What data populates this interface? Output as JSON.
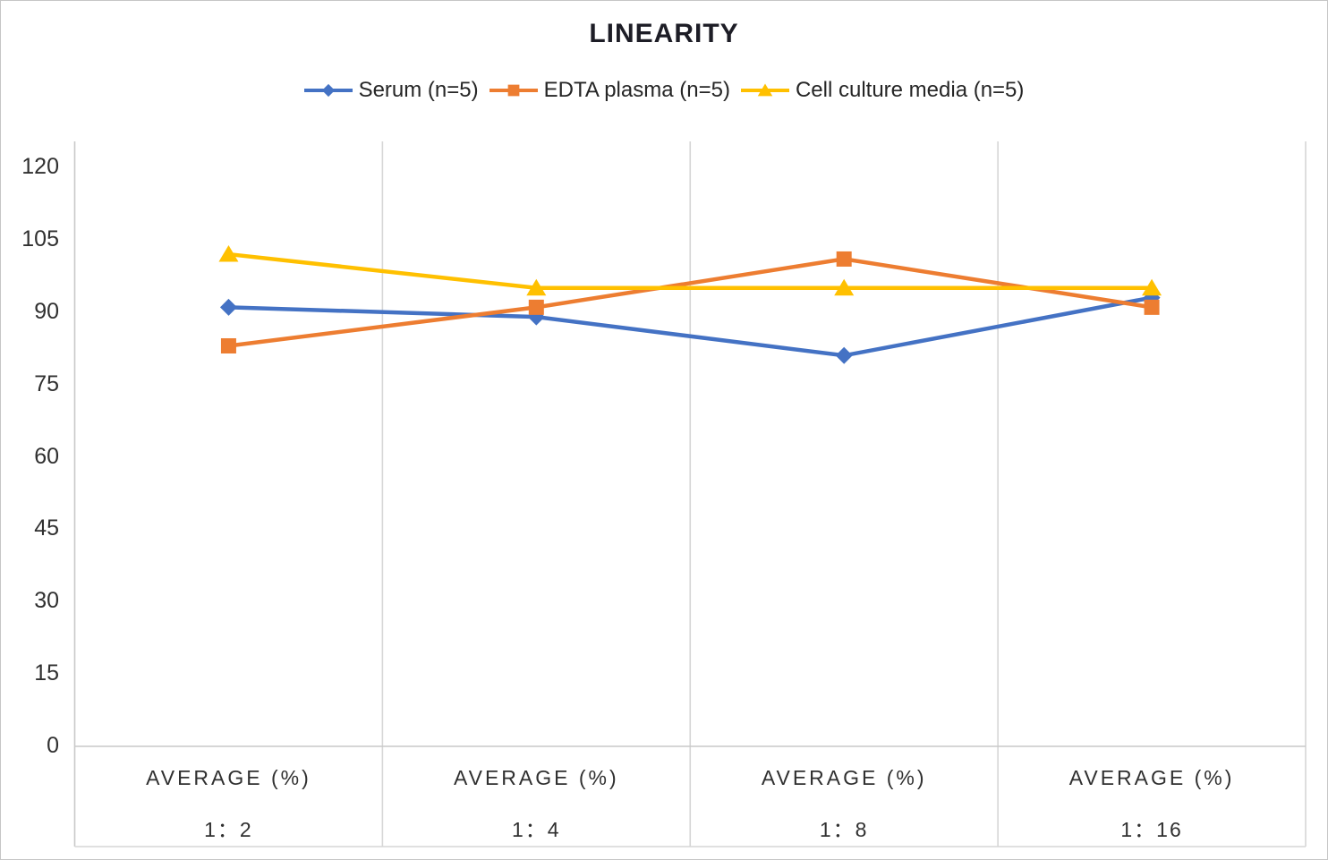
{
  "chart_data": {
    "type": "line",
    "title": "LINEARITY",
    "legend_position": "top",
    "grid": {
      "vertical": true,
      "horizontal": false
    },
    "y_axis": {
      "min": 0,
      "max": 120,
      "step": 15,
      "ticks": [
        0,
        15,
        30,
        45,
        60,
        75,
        90,
        105,
        120
      ]
    },
    "x_axis": {
      "categories": [
        {
          "label": "AVERAGE (%)",
          "dilution": "1：2"
        },
        {
          "label": "AVERAGE (%)",
          "dilution": "1：4"
        },
        {
          "label": "AVERAGE (%)",
          "dilution": "1：8"
        },
        {
          "label": "AVERAGE (%)",
          "dilution": "1：16"
        }
      ]
    },
    "series": [
      {
        "name": "Serum (n=5)",
        "marker": "diamond",
        "color": "#4472C4",
        "values": [
          91,
          89,
          81,
          93
        ]
      },
      {
        "name": "EDTA plasma (n=5)",
        "marker": "square",
        "color": "#ED7D31",
        "values": [
          83,
          91,
          101,
          91
        ]
      },
      {
        "name": "Cell culture media (n=5)",
        "marker": "triangle",
        "color": "#FFC000",
        "values": [
          102,
          95,
          95,
          95
        ]
      }
    ],
    "colors": {
      "title": "#1d1d26",
      "text": "#303030",
      "grid": "#d6d6d6",
      "axis": "#c9c9c9"
    }
  }
}
